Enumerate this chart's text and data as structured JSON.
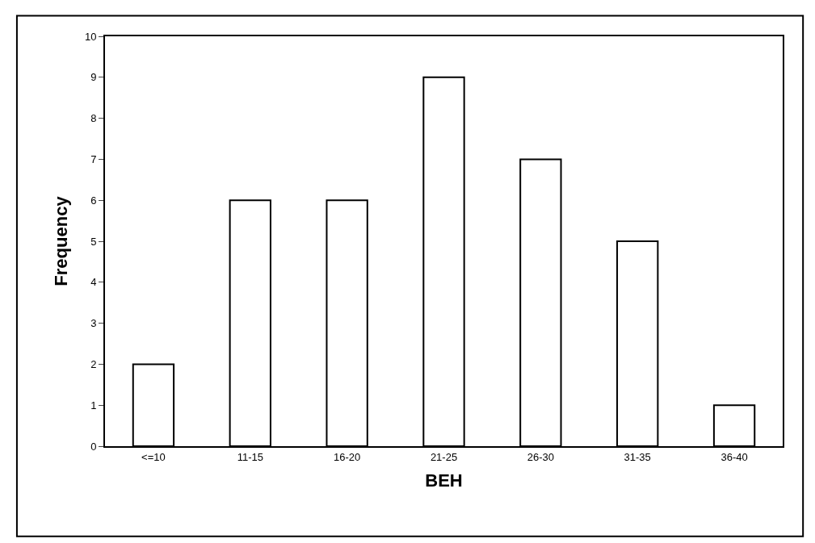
{
  "chart_data": {
    "type": "bar",
    "xlabel": "BEH",
    "ylabel": "Frequency",
    "categories": [
      "<=10",
      "11-15",
      "16-20",
      "21-25",
      "26-30",
      "31-35",
      "36-40"
    ],
    "values": [
      2,
      6,
      6,
      9,
      7,
      5,
      1
    ],
    "color": "#ffffff",
    "ylim": [
      0,
      10
    ],
    "yticks": [
      0,
      1,
      2,
      3,
      4,
      5,
      6,
      7,
      8,
      9,
      10
    ]
  }
}
